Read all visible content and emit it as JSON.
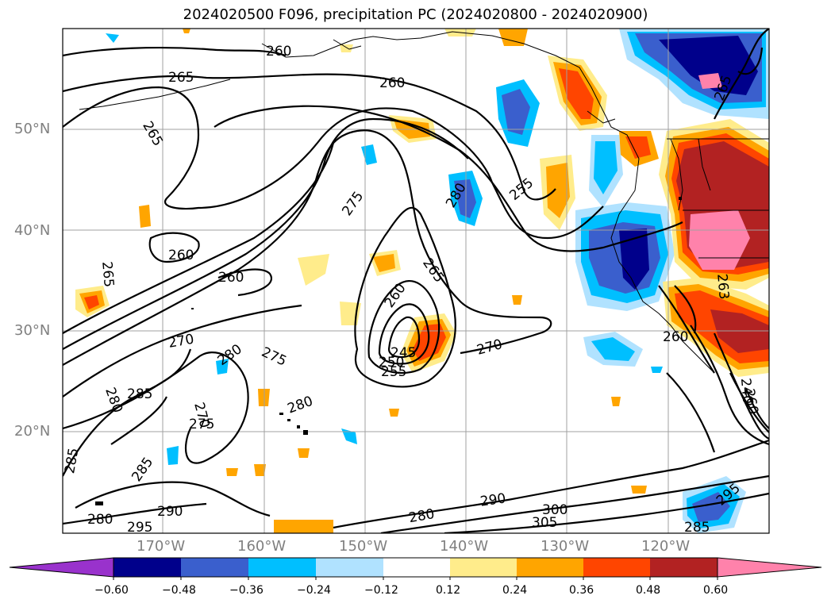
{
  "title": "2024020500 F096, precipitation PC (2024020800 - 2024020900)",
  "latitude_labels": [
    "50°N",
    "40°N",
    "30°N",
    "20°N"
  ],
  "longitude_labels": [
    "170°W",
    "160°W",
    "150°W",
    "140°W",
    "130°W",
    "120°W"
  ],
  "contour_labels": [
    "260",
    "265",
    "260",
    "265",
    "275",
    "280",
    "255",
    "260",
    "265",
    "260",
    "265",
    "270",
    "280",
    "275",
    "280",
    "285",
    "280",
    "270",
    "275",
    "245",
    "250",
    "255",
    "260",
    "263",
    "270",
    "280",
    "285",
    "285",
    "290",
    "295",
    "280",
    "285",
    "290",
    "300",
    "305",
    "295",
    "285",
    "260",
    "263",
    "240",
    "260"
  ],
  "colorbar": {
    "tick_labels": [
      "−0.60",
      "−0.48",
      "−0.36",
      "−0.24",
      "−0.12",
      "0.12",
      "0.24",
      "0.36",
      "0.48",
      "0.60"
    ],
    "colors": [
      "#9932cc",
      "#00008b",
      "#3a5fcd",
      "#00bfff",
      "#b0e2ff",
      "#ffffff",
      "#ffec8b",
      "#ffa500",
      "#ff4500",
      "#b22222",
      "#ff82ab"
    ]
  },
  "colors": {
    "coast": "#000000",
    "grid": "#a0a0a0",
    "axis_text": "#808080"
  }
}
